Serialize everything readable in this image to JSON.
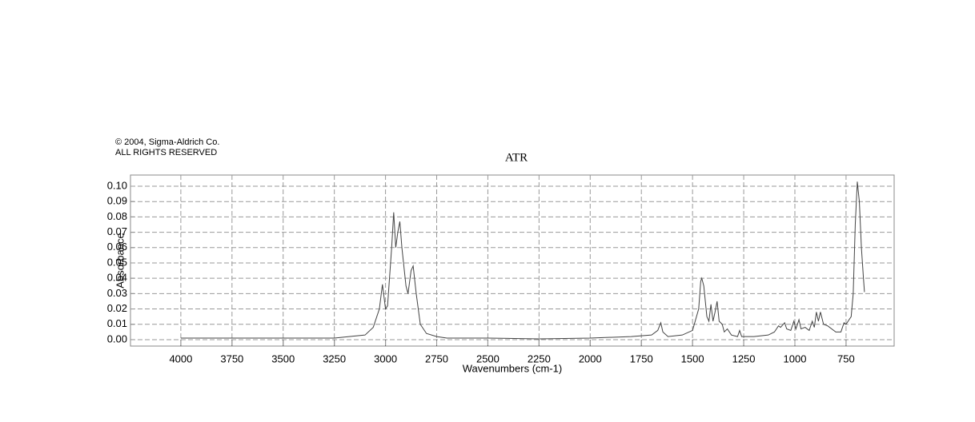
{
  "chart_data": {
    "type": "line",
    "notice": [
      "© 2004, Sigma-Aldrich Co.",
      "ALL RIGHTS RESERVED"
    ],
    "title": "ATR",
    "x_label": "Wavenumbers (cm-1)",
    "y_label": "Absorbance",
    "color": "#444444",
    "grid": true,
    "x": [
      4000,
      3800,
      3500,
      3250,
      3100,
      3060,
      3030,
      3015,
      3000,
      2990,
      2970,
      2960,
      2950,
      2940,
      2930,
      2920,
      2900,
      2890,
      2875,
      2865,
      2850,
      2830,
      2800,
      2750,
      2700,
      2500,
      2250,
      2000,
      1800,
      1700,
      1670,
      1655,
      1645,
      1620,
      1550,
      1500,
      1470,
      1460,
      1455,
      1445,
      1430,
      1420,
      1410,
      1400,
      1390,
      1380,
      1370,
      1355,
      1345,
      1330,
      1310,
      1280,
      1270,
      1260,
      1200,
      1130,
      1100,
      1080,
      1070,
      1050,
      1040,
      1020,
      1005,
      995,
      980,
      970,
      950,
      930,
      915,
      905,
      895,
      885,
      875,
      860,
      840,
      800,
      775,
      760,
      750,
      740,
      725,
      715,
      705,
      695,
      685,
      675,
      665,
      660
    ],
    "values": [
      0.001,
      0.001,
      0.001,
      0.001,
      0.003,
      0.008,
      0.02,
      0.036,
      0.02,
      0.022,
      0.06,
      0.083,
      0.06,
      0.07,
      0.077,
      0.06,
      0.035,
      0.03,
      0.045,
      0.048,
      0.03,
      0.01,
      0.004,
      0.002,
      0.001,
      0.001,
      0.0005,
      0.001,
      0.002,
      0.003,
      0.006,
      0.011,
      0.005,
      0.002,
      0.003,
      0.006,
      0.02,
      0.038,
      0.04,
      0.035,
      0.015,
      0.012,
      0.023,
      0.012,
      0.018,
      0.025,
      0.012,
      0.01,
      0.005,
      0.007,
      0.003,
      0.002,
      0.006,
      0.002,
      0.002,
      0.003,
      0.005,
      0.009,
      0.008,
      0.011,
      0.007,
      0.006,
      0.012,
      0.007,
      0.013,
      0.007,
      0.008,
      0.006,
      0.012,
      0.008,
      0.018,
      0.012,
      0.018,
      0.01,
      0.009,
      0.005,
      0.005,
      0.011,
      0.01,
      0.012,
      0.015,
      0.03,
      0.075,
      0.103,
      0.09,
      0.06,
      0.04,
      0.031
    ],
    "xlim": [
      4246,
      515
    ],
    "ylim": [
      -0.0042,
      0.1073
    ],
    "xticks": [
      4000,
      3750,
      3500,
      3250,
      3000,
      2750,
      2500,
      2250,
      2000,
      1750,
      1500,
      1250,
      1000,
      750
    ],
    "yticks": [
      {
        "value": 0,
        "label": "0.00"
      },
      {
        "value": 0.01,
        "label": "0.01"
      },
      {
        "value": 0.02,
        "label": "0.02"
      },
      {
        "value": 0.03,
        "label": "0.03"
      },
      {
        "value": 0.04,
        "label": "0.04"
      },
      {
        "value": 0.05,
        "label": "0.05"
      },
      {
        "value": 0.06,
        "label": "0.06"
      },
      {
        "value": 0.07,
        "label": "0.07"
      },
      {
        "value": 0.08,
        "label": "0.08"
      },
      {
        "value": 0.09,
        "label": "0.09"
      },
      {
        "value": 0.1,
        "label": "0.10"
      }
    ]
  }
}
